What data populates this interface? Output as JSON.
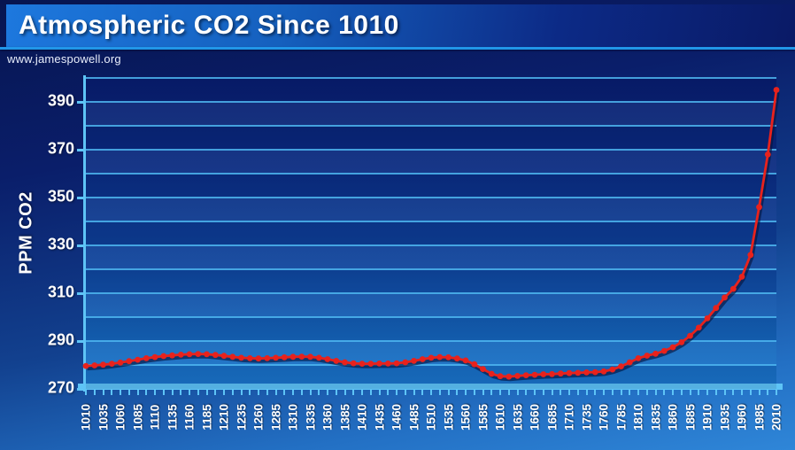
{
  "header": {
    "title": "Atmospheric CO2 Since 1010"
  },
  "watermark": {
    "url": "www.jamespowell.org"
  },
  "colors": {
    "header_left": "#1d78de",
    "header_right": "#0a1a66",
    "separator": "#2196e8",
    "slide_top": "#071550",
    "slide_bottom": "#2f86d8",
    "plot_top": "#081e6e",
    "plot_bottom": "#1b77cc",
    "gridline": "#4db6f0",
    "axis": "#5ec4f6",
    "line": "#e8221c",
    "marker": "#e8221c",
    "text": "#ffffff"
  },
  "chart_data": {
    "type": "line",
    "title": "Atmospheric CO2 Since 1010",
    "xlabel": "",
    "ylabel": "PPM CO2",
    "xlim": [
      1010,
      2010
    ],
    "ylim": [
      270,
      400
    ],
    "grid": "horizontal, every 10 ppm",
    "legend": "none",
    "y_tick_labels": [
      390,
      370,
      350,
      330,
      310,
      290,
      270
    ],
    "x_tick_labels": [
      1010,
      1035,
      1060,
      1085,
      1110,
      1135,
      1160,
      1185,
      1210,
      1235,
      1260,
      1285,
      1310,
      1335,
      1360,
      1385,
      1410,
      1435,
      1460,
      1485,
      1510,
      1535,
      1560,
      1585,
      1610,
      1635,
      1660,
      1685,
      1710,
      1735,
      1760,
      1785,
      1810,
      1835,
      1860,
      1885,
      1910,
      1935,
      1960,
      1985,
      2010
    ],
    "series": [
      {
        "name": "Atmospheric CO2 (PPM)",
        "x": [
          1010,
          1022.5,
          1035,
          1047.5,
          1060,
          1072.5,
          1085,
          1097.5,
          1110,
          1122.5,
          1135,
          1147.5,
          1160,
          1172.5,
          1185,
          1197.5,
          1210,
          1222.5,
          1235,
          1247.5,
          1260,
          1272.5,
          1285,
          1297.5,
          1310,
          1322.5,
          1335,
          1347.5,
          1360,
          1372.5,
          1385,
          1397.5,
          1410,
          1422.5,
          1435,
          1447.5,
          1460,
          1472.5,
          1485,
          1497.5,
          1510,
          1522.5,
          1535,
          1547.5,
          1560,
          1572.5,
          1585,
          1597.5,
          1610,
          1622.5,
          1635,
          1647.5,
          1660,
          1672.5,
          1685,
          1697.5,
          1710,
          1722.5,
          1735,
          1747.5,
          1760,
          1772.5,
          1785,
          1797.5,
          1810,
          1822.5,
          1835,
          1847.5,
          1860,
          1872.5,
          1885,
          1897.5,
          1910,
          1922.5,
          1935,
          1947.5,
          1960,
          1972.5,
          1985,
          1997.5,
          2010
        ],
        "values": [
          279.6,
          279.8,
          280.1,
          280.5,
          281.0,
          281.6,
          282.2,
          282.8,
          283.3,
          283.7,
          284.0,
          284.3,
          284.5,
          284.6,
          284.5,
          284.2,
          283.8,
          283.4,
          283.0,
          282.8,
          282.7,
          282.8,
          283.0,
          283.2,
          283.4,
          283.5,
          283.4,
          283.0,
          282.4,
          281.7,
          281.1,
          280.7,
          280.5,
          280.5,
          280.6,
          280.6,
          280.7,
          281.1,
          281.7,
          282.4,
          283.0,
          283.3,
          283.2,
          282.7,
          281.9,
          280.3,
          278.3,
          276.3,
          275.3,
          275.1,
          275.4,
          275.7,
          275.9,
          276.1,
          276.2,
          276.4,
          276.6,
          276.7,
          276.9,
          277.0,
          277.3,
          278.1,
          279.4,
          281.1,
          282.8,
          283.9,
          284.7,
          285.9,
          287.4,
          289.5,
          292.2,
          295.6,
          299.5,
          303.8,
          308.2,
          311.8,
          316.9,
          326.0,
          346.0,
          368.0,
          395.0
        ]
      }
    ]
  }
}
